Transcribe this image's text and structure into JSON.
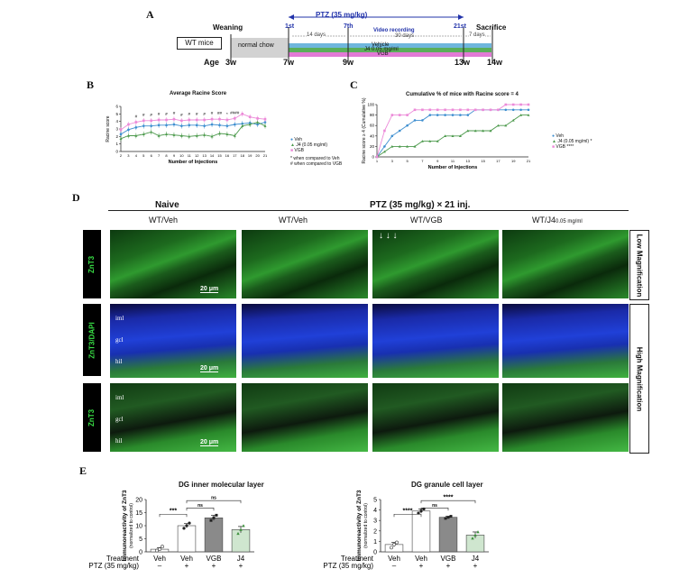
{
  "panels": {
    "a": "A",
    "b": "B",
    "c": "C",
    "d": "D",
    "e": "E"
  },
  "timeline": {
    "ptz_label": "PTZ (35 mg/kg)",
    "weaning": "Weaning",
    "sacrifice": "Sacrifice",
    "group_label": "WT mice",
    "normal_chow": "normal chow",
    "injection_marks": [
      "1st",
      "7th",
      "21st"
    ],
    "days_labels": [
      "14 days",
      "30 days",
      "7 days"
    ],
    "video_recording": "Video recording",
    "treatments": [
      "Vehicle",
      "J4 0.05 mg/ml",
      "VGB"
    ],
    "age_label": "Age",
    "ages": [
      "3w",
      "7w",
      "9w",
      "13w",
      "14w"
    ],
    "colors": {
      "ptz": "#2233aa",
      "vehicle": "#6fb6dd",
      "j4": "#5aae5a",
      "vgb": "#e27ad6",
      "chow": "#d2d2d2"
    }
  },
  "chart_data": [
    {
      "type": "line",
      "title": "Average Racine Score",
      "xlabel": "Number of Injections",
      "ylabel": "Racine score",
      "x": [
        2,
        3,
        4,
        5,
        6,
        7,
        8,
        9,
        10,
        11,
        12,
        13,
        14,
        15,
        16,
        17,
        18,
        19,
        20,
        21
      ],
      "x_tick_labels": [
        "2",
        "3",
        "4",
        "5",
        "6",
        "7",
        "8",
        "9",
        "10",
        "11",
        "12",
        "13",
        "14",
        "15",
        "16",
        "17",
        "18",
        "19",
        "20",
        "21"
      ],
      "ylim": [
        0,
        6
      ],
      "y_ticks": [
        0,
        1,
        2,
        3,
        4,
        5,
        6
      ],
      "series": [
        {
          "name": "Veh",
          "color": "#3f8fd0",
          "values": [
            2.3,
            2.9,
            3.2,
            3.4,
            3.4,
            3.5,
            3.5,
            3.6,
            3.4,
            3.5,
            3.5,
            3.4,
            3.6,
            3.5,
            3.4,
            3.6,
            3.7,
            3.8,
            3.6,
            3.9
          ]
        },
        {
          "name": "J4 (0.05 mg/ml)",
          "color": "#4d9a4d",
          "values": [
            1.7,
            2.1,
            2.1,
            2.3,
            2.6,
            2.1,
            2.3,
            2.2,
            2.1,
            2.0,
            2.1,
            2.2,
            2.0,
            2.4,
            2.3,
            2.1,
            3.4,
            3.6,
            3.9,
            3.4
          ]
        },
        {
          "name": "VGB",
          "color": "#ec8ad8",
          "values": [
            2.9,
            3.6,
            3.9,
            4.1,
            4.1,
            4.2,
            4.2,
            4.3,
            4.1,
            4.2,
            4.2,
            4.2,
            4.3,
            4.3,
            4.2,
            4.4,
            5.0,
            4.6,
            4.4,
            4.3
          ]
        }
      ],
      "annotations": [
        "#",
        "#",
        "#",
        "#",
        "#",
        "#",
        "#",
        "#",
        "#",
        "#",
        "#",
        "##",
        "*",
        "####"
      ],
      "legend_notes": [
        "* when compared to Veh",
        "# when compared to VGB"
      ],
      "legend_position": "right"
    },
    {
      "type": "line",
      "title": "Cumulative % of mice with Racine score = 4",
      "xlabel": "Number of Injections",
      "ylabel": "Racine score ≥ 4 (Cumulative %)",
      "x": [
        1,
        2,
        3,
        4,
        5,
        6,
        7,
        8,
        9,
        10,
        11,
        12,
        13,
        14,
        15,
        16,
        17,
        18,
        19,
        20,
        21
      ],
      "x_tick_labels": [
        "1",
        "3",
        "5",
        "7",
        "9",
        "11",
        "13",
        "15",
        "17",
        "19",
        "21"
      ],
      "ylim": [
        0,
        100
      ],
      "y_ticks": [
        0,
        20,
        40,
        60,
        80,
        100
      ],
      "series": [
        {
          "name": "Veh",
          "color": "#3f8fd0",
          "values": [
            0,
            20,
            40,
            50,
            60,
            70,
            70,
            80,
            80,
            80,
            80,
            80,
            80,
            90,
            90,
            90,
            90,
            90,
            90,
            90,
            90
          ]
        },
        {
          "name": "J4 (0.05 mg/ml)",
          "color": "#4d9a4d",
          "values": [
            0,
            10,
            20,
            20,
            20,
            20,
            30,
            30,
            30,
            40,
            40,
            40,
            50,
            50,
            50,
            50,
            60,
            60,
            70,
            80,
            80
          ]
        },
        {
          "name": "VGB",
          "color": "#ec8ad8",
          "values": [
            0,
            50,
            80,
            80,
            80,
            90,
            90,
            90,
            90,
            90,
            90,
            90,
            90,
            90,
            90,
            90,
            90,
            100,
            100,
            100,
            100
          ]
        }
      ],
      "sig_labels": [
        "*",
        "****"
      ],
      "legend_position": "right"
    },
    {
      "type": "bar",
      "title": "DG inner molecular layer",
      "ylabel": "Immunoreactivity of ZnT3",
      "ylabel_sub": "(normalized to control)",
      "categories": [
        "Veh",
        "Veh",
        "VGB",
        "J4"
      ],
      "values": [
        1.0,
        10.0,
        13.0,
        8.5
      ],
      "errors": [
        0.6,
        0.8,
        1.0,
        1.2
      ],
      "points": [
        [
          0.5,
          1.0,
          2.0
        ],
        [
          9.0,
          10.0,
          11.0
        ],
        [
          12.0,
          13.0,
          14.0
        ],
        [
          7.0,
          8.5,
          10.0
        ]
      ],
      "colors": [
        "#ffffff",
        "#ffffff",
        "#8a8a8a",
        "#cfe6cf"
      ],
      "ylim": [
        0,
        20
      ],
      "y_ticks": [
        0,
        5,
        10,
        15,
        20
      ],
      "sig": [
        {
          "from": 0,
          "to": 1,
          "label": "***"
        },
        {
          "from": 1,
          "to": 2,
          "label": "ns"
        },
        {
          "from": 1,
          "to": 3,
          "label": "ns"
        }
      ],
      "row_labels": [
        "Treatment",
        "PTZ (35 mg/kg)"
      ],
      "ptz_signs": [
        "–",
        "+",
        "+",
        "+"
      ]
    },
    {
      "type": "bar",
      "title": "DG granule cell layer",
      "ylabel": "Immunoreactivity of ZnT3",
      "ylabel_sub": "(normalized to control)",
      "categories": [
        "Veh",
        "Veh",
        "VGB",
        "J4"
      ],
      "values": [
        0.7,
        3.9,
        3.3,
        1.6
      ],
      "errors": [
        0.2,
        0.2,
        0.1,
        0.3
      ],
      "points": [
        [
          0.4,
          0.7,
          0.9
        ],
        [
          3.7,
          3.9,
          4.1
        ],
        [
          3.2,
          3.3,
          3.4
        ],
        [
          1.3,
          1.6,
          1.9
        ]
      ],
      "colors": [
        "#ffffff",
        "#ffffff",
        "#8a8a8a",
        "#cfe6cf"
      ],
      "ylim": [
        0,
        5
      ],
      "y_ticks": [
        0,
        1,
        2,
        3,
        4,
        5
      ],
      "sig": [
        {
          "from": 0,
          "to": 1,
          "label": "****"
        },
        {
          "from": 1,
          "to": 2,
          "label": "ns"
        },
        {
          "from": 1,
          "to": 3,
          "label": "****"
        }
      ],
      "row_labels": [
        "Treatment",
        "PTZ (35 mg/kg)"
      ],
      "ptz_signs": [
        "–",
        "+",
        "+",
        "+"
      ]
    }
  ],
  "micrographs": {
    "col_group_naive": "Naive",
    "col_group_ptz": "PTZ (35 mg/kg) × 21 inj.",
    "cols": [
      "WT/Veh",
      "WT/Veh",
      "WT/VGB",
      "WT/J4"
    ],
    "j4_subscript": "0.05 mg/ml",
    "rows": [
      "ZnT3",
      "ZnT3/DAPI",
      "ZnT3"
    ],
    "row_label_dapi": "DAPI",
    "side_low": "Low Magnification",
    "side_high": "High Magnification",
    "layers": [
      "iml",
      "gcl",
      "hil"
    ],
    "scale_bar": "20 μm",
    "arrows": "↓ ↓ ↓"
  }
}
